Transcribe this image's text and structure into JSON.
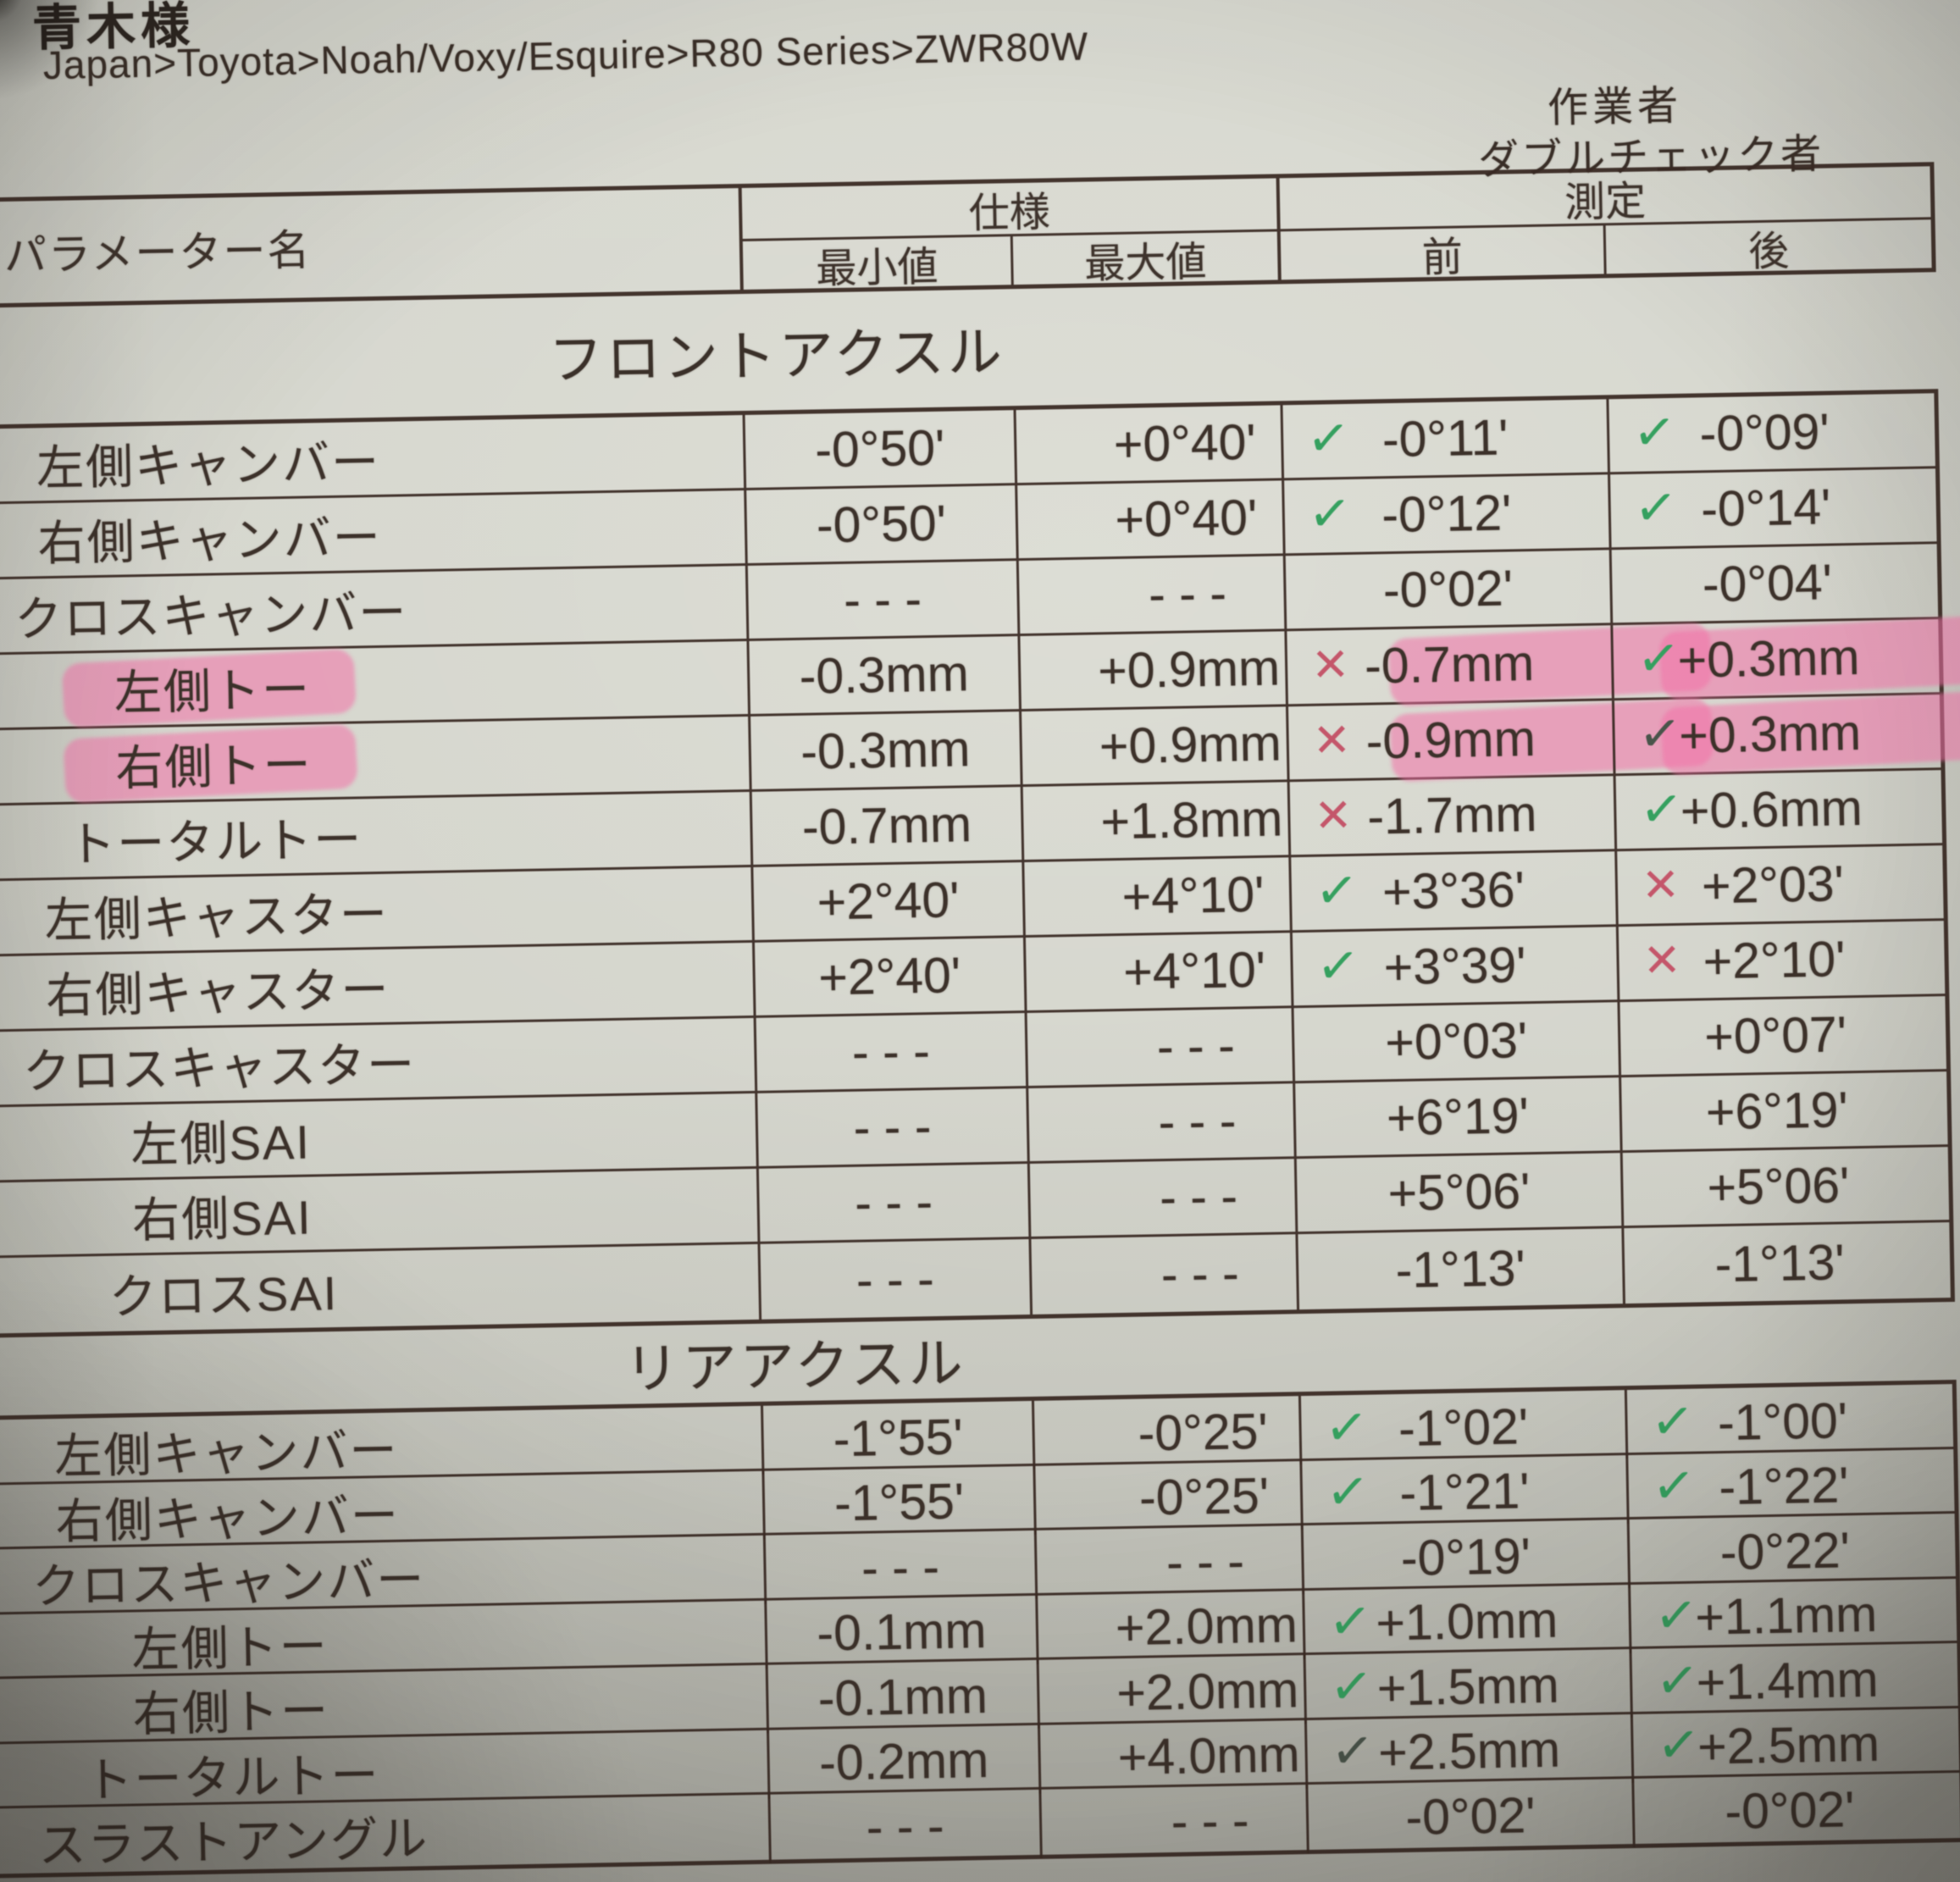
{
  "meta": {
    "customer": "青木様",
    "breadcrumb": "Japan>Toyota>Noah/Voxy/Esquire>R80 Series>ZWR80W",
    "worker_label": "作業者",
    "double_check_label": "ダブルチェック者"
  },
  "table": {
    "headers": {
      "param": "パラメーター名",
      "spec": "仕様",
      "measure": "測定",
      "min": "最小値",
      "max": "最大値",
      "before": "前",
      "after": "後"
    },
    "sections": [
      {
        "title": "フロントアクスル",
        "rows": [
          {
            "name": "左側キャンバー",
            "min": "-0°50'",
            "max": "+0°40'",
            "before": {
              "mark": "check",
              "value": "-0°11'"
            },
            "after": {
              "mark": "check",
              "value": "-0°09'"
            }
          },
          {
            "name": "右側キャンバー",
            "min": "-0°50'",
            "max": "+0°40'",
            "before": {
              "mark": "check",
              "value": "-0°12'"
            },
            "after": {
              "mark": "check",
              "value": "-0°14'"
            }
          },
          {
            "name": "クロスキャンバー",
            "min": "- - -",
            "max": "- - -",
            "before": {
              "mark": "none",
              "value": "-0°02'"
            },
            "after": {
              "mark": "none",
              "value": "-0°04'"
            }
          },
          {
            "name": "左側トー",
            "name_highlight": true,
            "min": "-0.3mm",
            "max": "+0.9mm",
            "before": {
              "mark": "x",
              "value": "-0.7mm",
              "highlight": true
            },
            "after": {
              "mark": "check",
              "value": "+0.3mm",
              "highlight": true
            }
          },
          {
            "name": "右側トー",
            "name_highlight": true,
            "min": "-0.3mm",
            "max": "+0.9mm",
            "before": {
              "mark": "x",
              "value": "-0.9mm",
              "highlight": true
            },
            "after": {
              "mark": "check-dark",
              "value": "+0.3mm",
              "highlight": true
            }
          },
          {
            "name": "トータルトー",
            "min": "-0.7mm",
            "max": "+1.8mm",
            "before": {
              "mark": "x",
              "value": "-1.7mm"
            },
            "after": {
              "mark": "check",
              "value": "+0.6mm"
            }
          },
          {
            "name": "左側キャスター",
            "min": "+2°40'",
            "max": "+4°10'",
            "before": {
              "mark": "check",
              "value": "+3°36'"
            },
            "after": {
              "mark": "x",
              "value": "+2°03'"
            }
          },
          {
            "name": "右側キャスター",
            "min": "+2°40'",
            "max": "+4°10'",
            "before": {
              "mark": "check",
              "value": "+3°39'"
            },
            "after": {
              "mark": "x",
              "value": "+2°10'"
            }
          },
          {
            "name": "クロスキャスター",
            "min": "- - -",
            "max": "- - -",
            "before": {
              "mark": "none",
              "value": "+0°03'"
            },
            "after": {
              "mark": "none",
              "value": "+0°07'"
            }
          },
          {
            "name": "左側SAI",
            "min": "- - -",
            "max": "- - -",
            "before": {
              "mark": "none",
              "value": "+6°19'"
            },
            "after": {
              "mark": "none",
              "value": "+6°19'"
            }
          },
          {
            "name": "右側SAI",
            "min": "- - -",
            "max": "- - -",
            "before": {
              "mark": "none",
              "value": "+5°06'"
            },
            "after": {
              "mark": "none",
              "value": "+5°06'"
            }
          },
          {
            "name": "クロスSAI",
            "min": "- - -",
            "max": "- - -",
            "before": {
              "mark": "none",
              "value": "-1°13'"
            },
            "after": {
              "mark": "none",
              "value": "-1°13'"
            }
          }
        ]
      },
      {
        "title": "リアアクスル",
        "rows": [
          {
            "name": "左側キャンバー",
            "min": "-1°55'",
            "max": "-0°25'",
            "before": {
              "mark": "check",
              "value": "-1°02'"
            },
            "after": {
              "mark": "check",
              "value": "-1°00'"
            }
          },
          {
            "name": "右側キャンバー",
            "min": "-1°55'",
            "max": "-0°25'",
            "before": {
              "mark": "check",
              "value": "-1°21'"
            },
            "after": {
              "mark": "check",
              "value": "-1°22'"
            }
          },
          {
            "name": "クロスキャンバー",
            "min": "- - -",
            "max": "- - -",
            "before": {
              "mark": "none",
              "value": "-0°19'"
            },
            "after": {
              "mark": "none",
              "value": "-0°22'"
            }
          },
          {
            "name": "左側トー",
            "min": "-0.1mm",
            "max": "+2.0mm",
            "before": {
              "mark": "check",
              "value": "+1.0mm"
            },
            "after": {
              "mark": "check",
              "value": "+1.1mm"
            }
          },
          {
            "name": "右側トー",
            "min": "-0.1mm",
            "max": "+2.0mm",
            "before": {
              "mark": "check",
              "value": "+1.5mm"
            },
            "after": {
              "mark": "check",
              "value": "+1.4mm"
            }
          },
          {
            "name": "トータルトー",
            "min": "-0.2mm",
            "max": "+4.0mm",
            "before": {
              "mark": "check-dark",
              "value": "+2.5mm"
            },
            "after": {
              "mark": "check",
              "value": "+2.5mm"
            }
          },
          {
            "name": "スラストアングル",
            "min": "- - -",
            "max": "- - -",
            "before": {
              "mark": "none",
              "value": "-0°02'"
            },
            "after": {
              "mark": "none",
              "value": "-0°02'"
            }
          }
        ]
      }
    ]
  },
  "marks": {
    "check": "✓",
    "check-dark": "✓",
    "x": "✕"
  },
  "colors": {
    "check_green": "#35a05f",
    "check_dark": "#49544a",
    "x_red": "#c4566a",
    "highlight_pink": "rgba(242,113,168,0.55)",
    "ink": "#3e332c",
    "paper": "#d0d1c8"
  }
}
